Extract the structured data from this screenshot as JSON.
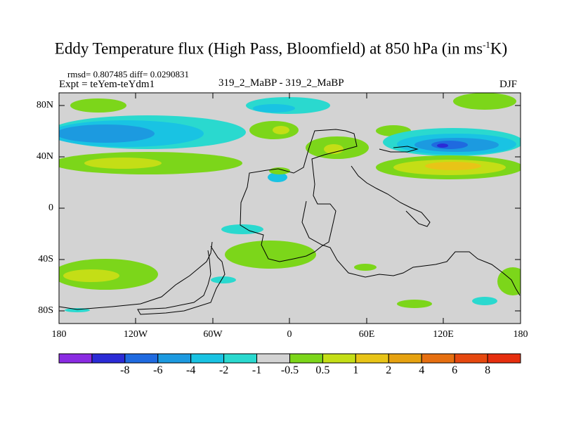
{
  "title": {
    "main": "Eddy Temperature flux (High Pass, Bloomfield) at 850 hPa (in ms",
    "sup": "-1",
    "tail": "K)"
  },
  "stats": "rmsd= 0.807485 diff= 0.0290831",
  "expt": "Expt = teYem-teYdm1",
  "case": "319_2_MaBP - 319_2_MaBP",
  "season": "DJF",
  "axes": {
    "lat_ticks": [
      "80N",
      "40N",
      "0",
      "40S",
      "80S"
    ],
    "lon_ticks": [
      "180",
      "120W",
      "60W",
      "0",
      "60E",
      "120E",
      "180"
    ]
  },
  "colorbar": {
    "colors": [
      "#8a2be2",
      "#2b2bd6",
      "#1f6ae0",
      "#1c9ae0",
      "#19c3e3",
      "#2ad9cf",
      "#d3d3d3",
      "#7cd61a",
      "#c4de16",
      "#e8c417",
      "#e6a210",
      "#e66f10",
      "#e6480f",
      "#e62e0e"
    ],
    "labels": [
      "-8",
      "-6",
      "-4",
      "-2",
      "-1",
      "-0.5",
      "0.5",
      "1",
      "2",
      "4",
      "6",
      "8"
    ]
  }
}
